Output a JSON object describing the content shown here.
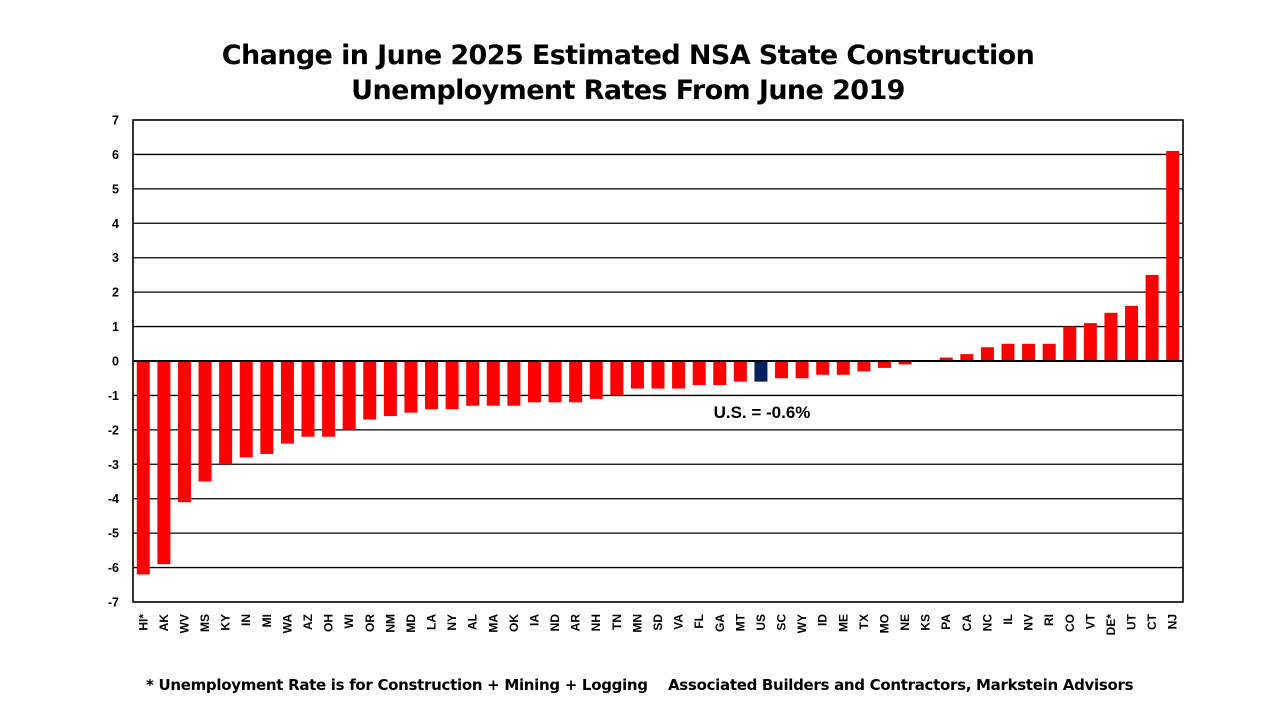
{
  "chart_data": {
    "type": "bar",
    "title": [
      "Change in June 2025 Estimated NSA State Construction",
      "Unemployment Rates From June 2019"
    ],
    "xlabel": "",
    "ylabel": "",
    "ylim": [
      -7,
      7
    ],
    "yticks": [
      7,
      6,
      5,
      4,
      3,
      2,
      1,
      0,
      -1,
      -2,
      -3,
      -4,
      -5,
      -6,
      -7
    ],
    "grid": true,
    "categories": [
      "HI*",
      "AK",
      "WV",
      "MS",
      "KY",
      "IN",
      "MI",
      "WA",
      "AZ",
      "OH",
      "WI",
      "OR",
      "NM",
      "MD",
      "LA",
      "NY",
      "AL",
      "MA",
      "OK",
      "IA",
      "ND",
      "AR",
      "NH",
      "TN",
      "MN",
      "SD",
      "VA",
      "FL",
      "GA",
      "MT",
      "US",
      "SC",
      "WY",
      "ID",
      "ME",
      "TX",
      "MO",
      "NE",
      "KS",
      "PA",
      "CA",
      "NC",
      "IL",
      "NV",
      "RI",
      "CO",
      "VT",
      "DE*",
      "UT",
      "CT",
      "NJ"
    ],
    "values": [
      -6.2,
      -5.9,
      -4.1,
      -3.5,
      -3.0,
      -2.8,
      -2.7,
      -2.4,
      -2.2,
      -2.2,
      -2.0,
      -1.7,
      -1.6,
      -1.5,
      -1.4,
      -1.4,
      -1.3,
      -1.3,
      -1.3,
      -1.2,
      -1.2,
      -1.2,
      -1.1,
      -1.0,
      -0.8,
      -0.8,
      -0.8,
      -0.7,
      -0.7,
      -0.6,
      -0.6,
      -0.5,
      -0.5,
      -0.4,
      -0.4,
      -0.3,
      -0.2,
      -0.1,
      0.0,
      0.1,
      0.2,
      0.4,
      0.5,
      0.5,
      0.5,
      1.0,
      1.1,
      1.4,
      1.6,
      2.5,
      6.1
    ],
    "colors": {
      "bar": "#ff0000",
      "highlight": "#002060",
      "highlight_category": "US"
    },
    "annotation": "U.S. = -0.6%"
  },
  "footer": {
    "note": "* Unemployment Rate is for Construction + Mining + Logging",
    "source": "Associated Builders and Contractors, Markstein Advisors"
  }
}
